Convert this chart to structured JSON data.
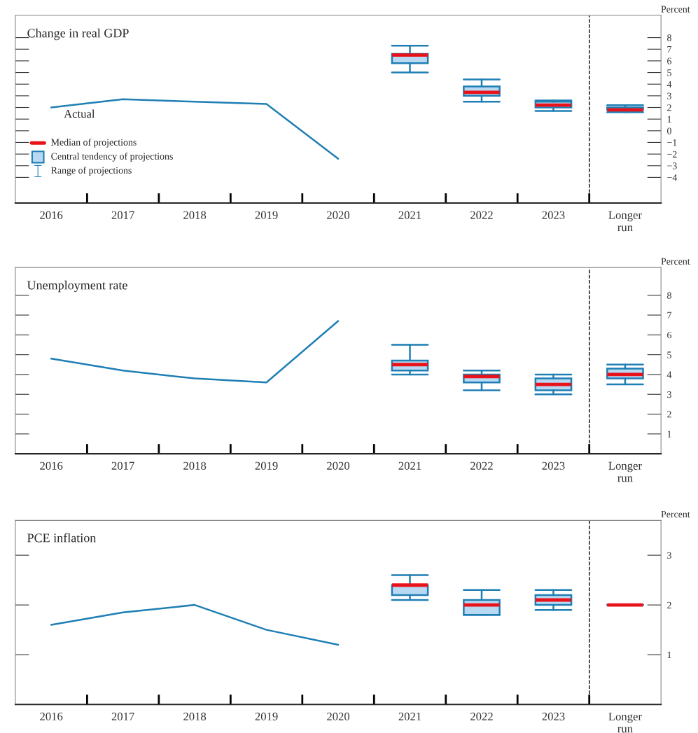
{
  "chart_data": [
    {
      "type": "box",
      "title": "Change in real GDP",
      "ylabel": "Percent",
      "categories": [
        "2016",
        "2017",
        "2018",
        "2019",
        "2020",
        "2021",
        "2022",
        "2023",
        "Longer run"
      ],
      "series": [
        {
          "type": "line",
          "color": "#1f7fb4",
          "values": [
            2.0,
            2.7,
            2.5,
            2.3,
            -2.4,
            null,
            null,
            null,
            null
          ]
        },
        {
          "color": "#1f7fb4",
          "boxes": [
            null,
            null,
            null,
            null,
            null,
            {
              "low": 5.0,
              "q1": 5.8,
              "median": 6.5,
              "q3": 6.6,
              "high": 7.3
            },
            {
              "low": 2.5,
              "q1": 3.0,
              "median": 3.3,
              "q3": 3.8,
              "high": 4.4
            },
            {
              "low": 1.7,
              "q1": 2.0,
              "median": 2.2,
              "q3": 2.5,
              "high": 2.6
            },
            {
              "low": 1.6,
              "q1": 1.8,
              "median": 1.8,
              "q3": 2.0,
              "high": 2.2
            }
          ]
        }
      ],
      "ylim": [
        -6.2,
        9.9
      ],
      "yticks": [
        {
          "value": -4,
          "label": "−4"
        },
        {
          "value": -3,
          "label": "−3"
        },
        {
          "value": -2,
          "label": "−2"
        },
        {
          "value": -1,
          "label": "−1"
        },
        0,
        1,
        2,
        3,
        4,
        5,
        6,
        7,
        8
      ],
      "annotations": [
        "Actual",
        "Median of projections",
        "Central tendency of projections",
        "Range of projections"
      ]
    },
    {
      "type": "box",
      "title": "Unemployment rate",
      "ylabel": "Percent",
      "categories": [
        "2016",
        "2017",
        "2018",
        "2019",
        "2020",
        "2021",
        "2022",
        "2023",
        "Longer run"
      ],
      "series": [
        {
          "type": "line",
          "color": "#1f7fb4",
          "values": [
            4.8,
            4.2,
            3.8,
            3.6,
            6.7,
            null,
            null,
            null,
            null
          ]
        },
        {
          "color": "#1f7fb4",
          "boxes": [
            null,
            null,
            null,
            null,
            null,
            {
              "low": 4.0,
              "q1": 4.2,
              "median": 4.5,
              "q3": 4.7,
              "high": 5.5
            },
            {
              "low": 3.2,
              "q1": 3.6,
              "median": 3.9,
              "q3": 4.0,
              "high": 4.2
            },
            {
              "low": 3.0,
              "q1": 3.2,
              "median": 3.5,
              "q3": 3.8,
              "high": 4.0
            },
            {
              "low": 3.5,
              "q1": 3.8,
              "median": 4.0,
              "q3": 4.3,
              "high": 4.5
            }
          ]
        }
      ],
      "ylim": [
        0,
        9.4
      ],
      "yticks": [
        1,
        2,
        3,
        4,
        5,
        6,
        7,
        8
      ]
    },
    {
      "type": "box",
      "title": "PCE inflation",
      "ylabel": "Percent",
      "categories": [
        "2016",
        "2017",
        "2018",
        "2019",
        "2020",
        "2021",
        "2022",
        "2023",
        "Longer run"
      ],
      "series": [
        {
          "type": "line",
          "color": "#1f7fb4",
          "values": [
            1.6,
            1.85,
            2.0,
            1.5,
            1.2,
            null,
            null,
            null,
            null
          ]
        },
        {
          "color": "#1f7fb4",
          "boxes": [
            null,
            null,
            null,
            null,
            null,
            {
              "low": 2.1,
              "q1": 2.2,
              "median": 2.4,
              "q3": 2.4,
              "high": 2.6
            },
            {
              "low": 1.8,
              "q1": 1.8,
              "median": 2.0,
              "q3": 2.1,
              "high": 2.3
            },
            {
              "low": 1.9,
              "q1": 2.0,
              "median": 2.1,
              "q3": 2.2,
              "high": 2.3
            },
            {
              "low": 2.0,
              "q1": 2.0,
              "median": 2.0,
              "q3": 2.0,
              "high": 2.0
            }
          ]
        }
      ],
      "ylim": [
        0,
        3.7
      ],
      "yticks": [
        1,
        2,
        3
      ]
    }
  ]
}
